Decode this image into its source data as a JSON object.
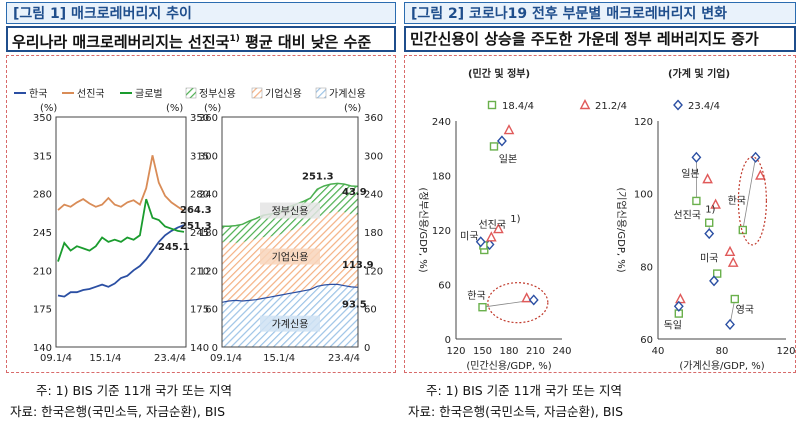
{
  "left": {
    "title": "[그림 1] 매크로레버리지 추이",
    "subtitle": "우리나라 매크로레버리지는 선진국",
    "subtitle_sup": "1)",
    "subtitle_tail": " 평균 대비 낮은 수준",
    "note": "주: 1) BIS 기준 11개 국가 또는 지역",
    "source": "자료: 한국은행(국민소득, 자금순환), BIS"
  },
  "right": {
    "title": "[그림 2] 코로나19 전후 부문별 매크로레버리지 변화",
    "subtitle": "민간신용이 상승을 주도한 가운데 정부 레버리지도 증가",
    "note": "주: 1) BIS 기준 11개 국가 또는 지역",
    "source": "자료: 한국은행(국민소득, 자금순환), BIS"
  },
  "colors": {
    "korea": "#2b4fa3",
    "advanced": "#d98c57",
    "global": "#1a9c2e",
    "gov": "#4caf50",
    "corp": "#f4b183",
    "household": "#9dc3e6",
    "m2018": "#6ab04c",
    "m2021": "#e05a5a",
    "m2023": "#2b4fa3"
  },
  "chart_data": [
    {
      "type": "line",
      "legend": [
        "한국",
        "선진국",
        "글로벌"
      ],
      "ylim": [
        140,
        350
      ],
      "yticks": [
        140,
        175,
        210,
        245,
        280,
        315,
        350
      ],
      "y_unit_left": "(%)",
      "y_unit_right": "(%)",
      "xticks": [
        "09.1/4",
        "15.1/4",
        "23.4/4"
      ],
      "series": [
        {
          "name": "한국",
          "color_key": "korea",
          "values": [
            187,
            186,
            190,
            190,
            192,
            193,
            195,
            197,
            195,
            198,
            203,
            205,
            210,
            214,
            220,
            228,
            236,
            242,
            246,
            249,
            251.3
          ],
          "end_label": "251.3"
        },
        {
          "name": "선진국",
          "color_key": "advanced",
          "values": [
            265,
            270,
            268,
            272,
            275,
            271,
            268,
            270,
            276,
            270,
            268,
            272,
            274,
            270,
            285,
            315,
            290,
            278,
            272,
            268,
            264.3
          ],
          "end_label": "264.3"
        },
        {
          "name": "글로벌",
          "color_key": "global",
          "values": [
            218,
            235,
            228,
            232,
            230,
            228,
            232,
            240,
            236,
            238,
            236,
            240,
            238,
            242,
            275,
            258,
            256,
            250,
            248,
            246,
            245.1
          ],
          "end_label": "245.1"
        }
      ]
    },
    {
      "type": "area",
      "legend": [
        "정부신용",
        "기업신용",
        "가계신용"
      ],
      "ylim": [
        0,
        360
      ],
      "yticks": [
        0,
        60,
        120,
        180,
        240,
        300,
        360
      ],
      "y_unit_left": "(%)",
      "y_unit_right": "(%)",
      "xticks": [
        "09.1/4",
        "15.1/4",
        "23.4/4"
      ],
      "series": [
        {
          "name": "가계신용",
          "color_key": "household",
          "values": [
            70,
            72,
            73,
            72,
            73,
            74,
            76,
            78,
            80,
            82,
            84,
            86,
            88,
            90,
            95,
            97,
            98,
            98,
            96,
            94,
            93.5
          ],
          "end_label": "93.5"
        },
        {
          "name": "기업신용",
          "color_key": "corp",
          "values": [
            95,
            92,
            90,
            92,
            94,
            95,
            96,
            95,
            94,
            96,
            98,
            100,
            102,
            104,
            108,
            110,
            112,
            114,
            115,
            114,
            113.9
          ],
          "end_label": "113.9"
        },
        {
          "name": "정부신용",
          "color_key": "gov",
          "values": [
            24,
            25,
            27,
            28,
            30,
            32,
            34,
            35,
            36,
            37,
            38,
            38,
            38,
            39,
            44,
            45,
            45,
            44,
            44,
            44,
            43.9
          ],
          "end_label": "43.9"
        }
      ],
      "total_label": "251.3",
      "band_labels": [
        "정부신용",
        "기업신용",
        "가계신용"
      ]
    },
    {
      "type": "scatter",
      "subtitle": "(민간 및 정부)",
      "legend": [
        "18.4/4",
        "21.2/4",
        "23.4/4"
      ],
      "xlabel": "(민간신용/GDP, %)",
      "ylabel": "(정부신용/GDP, %)",
      "xlim": [
        120,
        240
      ],
      "ylim": [
        0,
        240
      ],
      "xticks": [
        120,
        150,
        180,
        210,
        240
      ],
      "yticks": [
        0,
        60,
        120,
        180,
        240
      ],
      "groups": [
        {
          "name": "일본",
          "points": [
            [
              163,
              212
            ],
            [
              180,
              230
            ],
            [
              172,
              218
            ]
          ]
        },
        {
          "name": "선진국",
          "sup": "1)",
          "points": [
            [
              152,
              98
            ],
            [
              168,
              121
            ],
            [
              158,
              104
            ]
          ]
        },
        {
          "name": "미국",
          "points": [
            [
              151,
              103
            ],
            [
              160,
              112
            ],
            [
              148,
              107
            ]
          ]
        },
        {
          "name": "한국",
          "points": [
            [
              150,
              35
            ],
            [
              200,
              45
            ],
            [
              208,
              43
            ]
          ]
        }
      ]
    },
    {
      "type": "scatter",
      "subtitle": "(가계 및 기업)",
      "xlabel": "(가계신용/GDP, %)",
      "ylabel": "(기업신용/GDP, %)",
      "xlim": [
        40,
        120
      ],
      "ylim": [
        60,
        120
      ],
      "xticks": [
        40,
        80,
        120
      ],
      "yticks": [
        60,
        80,
        100,
        120
      ],
      "groups": [
        {
          "name": "일본",
          "points": [
            [
              64,
              98
            ],
            [
              71,
              104
            ],
            [
              64,
              110
            ]
          ]
        },
        {
          "name": "한국",
          "points": [
            [
              93,
              90
            ],
            [
              104,
              105
            ],
            [
              101,
              110
            ]
          ]
        },
        {
          "name": "선진국",
          "sup": "1)",
          "points": [
            [
              72,
              92
            ],
            [
              76,
              97
            ],
            [
              72,
              89
            ]
          ]
        },
        {
          "name": "미국",
          "points": [
            [
              77,
              78
            ],
            [
              85,
              84
            ],
            [
              75,
              76
            ]
          ]
        },
        {
          "name": "영국",
          "points": [
            [
              88,
              71
            ],
            [
              87,
              81
            ],
            [
              85,
              64
            ]
          ]
        },
        {
          "name": "독일",
          "points": [
            [
              53,
              67
            ],
            [
              54,
              71
            ],
            [
              53,
              69
            ]
          ]
        }
      ]
    }
  ]
}
